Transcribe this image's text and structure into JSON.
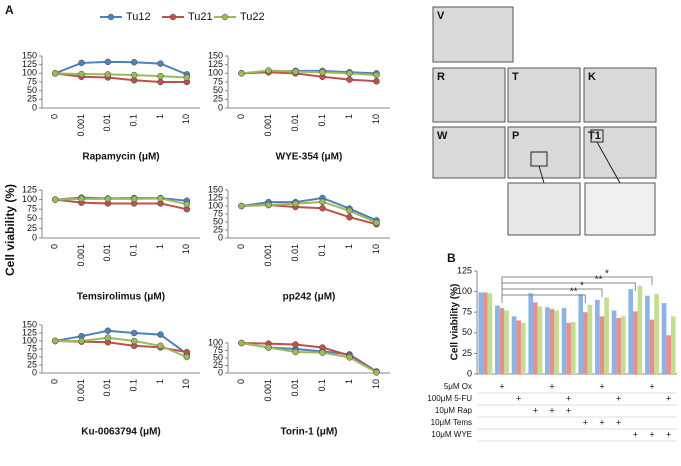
{
  "panel_labels": [
    "A",
    "B"
  ],
  "y_label": "Cell viability (%)",
  "legend": [
    {
      "name": "Tu12",
      "color": "#4f81bd"
    },
    {
      "name": "Tu21",
      "color": "#c0504d"
    },
    {
      "name": "Tu22",
      "color": "#9bbb59"
    }
  ],
  "chart_data": [
    {
      "type": "line",
      "x_label": "Rapamycin (μM)",
      "categories": [
        "0",
        "0.001",
        "0.01",
        "0.1",
        "1",
        "10"
      ],
      "ylim": [
        0,
        150
      ],
      "yticks": [
        0,
        25,
        50,
        75,
        100,
        125,
        150
      ],
      "series": [
        {
          "color": "#4f81bd",
          "values": [
            100,
            130,
            133,
            132,
            128,
            97
          ]
        },
        {
          "color": "#c0504d",
          "values": [
            100,
            90,
            88,
            80,
            75,
            75
          ]
        },
        {
          "color": "#9bbb59",
          "values": [
            100,
            98,
            97,
            95,
            92,
            88
          ]
        }
      ]
    },
    {
      "type": "line",
      "x_label": "WYE-354 (μM)",
      "categories": [
        "0",
        "0.001",
        "0.01",
        "0.1",
        "1",
        "10"
      ],
      "ylim": [
        0,
        150
      ],
      "yticks": [
        0,
        25,
        50,
        75,
        100,
        125,
        150
      ],
      "series": [
        {
          "color": "#4f81bd",
          "values": [
            100,
            105,
            107,
            107,
            103,
            100
          ]
        },
        {
          "color": "#c0504d",
          "values": [
            100,
            103,
            100,
            90,
            82,
            77
          ]
        },
        {
          "color": "#9bbb59",
          "values": [
            100,
            108,
            105,
            103,
            100,
            95
          ]
        }
      ]
    },
    {
      "type": "line",
      "x_label": "Temsirolimus (μM)",
      "categories": [
        "0",
        "0.001",
        "0.01",
        "0.1",
        "1",
        "10"
      ],
      "ylim": [
        0,
        125
      ],
      "yticks": [
        0,
        25,
        50,
        75,
        100,
        125
      ],
      "series": [
        {
          "color": "#4f81bd",
          "values": [
            100,
            105,
            103,
            104,
            104,
            97
          ]
        },
        {
          "color": "#c0504d",
          "values": [
            100,
            92,
            90,
            90,
            90,
            75
          ]
        },
        {
          "color": "#9bbb59",
          "values": [
            100,
            102,
            102,
            102,
            103,
            88
          ]
        }
      ]
    },
    {
      "type": "line",
      "x_label": "pp242 (μM)",
      "categories": [
        "0",
        "0.001",
        "0.01",
        "0.1",
        "1",
        "10"
      ],
      "ylim": [
        0,
        150
      ],
      "yticks": [
        0,
        25,
        50,
        75,
        100,
        125,
        150
      ],
      "series": [
        {
          "color": "#4f81bd",
          "values": [
            100,
            112,
            112,
            125,
            92,
            55
          ]
        },
        {
          "color": "#c0504d",
          "values": [
            100,
            103,
            97,
            93,
            65,
            43
          ]
        },
        {
          "color": "#9bbb59",
          "values": [
            100,
            103,
            107,
            113,
            85,
            48
          ]
        }
      ]
    },
    {
      "type": "line",
      "x_label": "Ku-0063794 (μM)",
      "categories": [
        "0",
        "0.001",
        "0.01",
        "0.1",
        "1",
        "10"
      ],
      "ylim": [
        0,
        150
      ],
      "yticks": [
        0,
        25,
        50,
        75,
        100,
        125,
        150
      ],
      "series": [
        {
          "color": "#4f81bd",
          "values": [
            100,
            115,
            132,
            125,
            120,
            60
          ]
        },
        {
          "color": "#c0504d",
          "values": [
            100,
            98,
            96,
            85,
            80,
            65
          ]
        },
        {
          "color": "#9bbb59",
          "values": [
            100,
            100,
            110,
            100,
            85,
            50
          ]
        }
      ]
    },
    {
      "type": "line",
      "x_label": "Torin-1 (μM)",
      "categories": [
        "0",
        "0.001",
        "0.01",
        "0.1",
        "1",
        "10"
      ],
      "ylim": [
        0,
        100
      ],
      "yticks": [
        0,
        25,
        50,
        75,
        100
      ],
      "series": [
        {
          "color": "#4f81bd",
          "values": [
            100,
            85,
            80,
            72,
            62,
            5
          ]
        },
        {
          "color": "#c0504d",
          "values": [
            100,
            98,
            95,
            85,
            58,
            3
          ]
        },
        {
          "color": "#9bbb59",
          "values": [
            100,
            85,
            70,
            68,
            52,
            2
          ]
        }
      ]
    },
    {
      "type": "bar",
      "y_label": "Cell viability (%)",
      "ylim": [
        0,
        125
      ],
      "yticks": [
        0,
        25,
        50,
        75,
        100,
        125
      ],
      "series": [
        {
          "color": "#8db3e2",
          "values": [
            99,
            83,
            70,
            98,
            81,
            80,
            97,
            90,
            77,
            103,
            95,
            86
          ]
        },
        {
          "color": "#e6908e",
          "values": [
            99,
            80,
            65,
            87,
            79,
            62,
            75,
            70,
            68,
            76,
            66,
            47
          ]
        },
        {
          "color": "#c4dd91",
          "values": [
            98,
            77,
            62,
            82,
            77,
            63,
            84,
            93,
            70,
            107,
            97,
            70
          ]
        }
      ],
      "annotations": [
        "*",
        "**",
        "*",
        "**"
      ],
      "treatments": [
        {
          "label": "5μM Ox",
          "marks": [
            null,
            "+",
            null,
            null,
            "+",
            null,
            null,
            "+",
            null,
            null,
            "+",
            null
          ]
        },
        {
          "label": "100μM 5-FU",
          "marks": [
            null,
            null,
            "+",
            null,
            null,
            "+",
            null,
            null,
            "+",
            null,
            null,
            "+"
          ]
        },
        {
          "label": "10μM Rap",
          "marks": [
            null,
            null,
            null,
            "+",
            "+",
            "+",
            null,
            null,
            null,
            null,
            null,
            null
          ]
        },
        {
          "label": "10μM Tems",
          "marks": [
            null,
            null,
            null,
            null,
            null,
            null,
            "+",
            "+",
            "+",
            null,
            null,
            null
          ]
        },
        {
          "label": "10μM WYE",
          "marks": [
            null,
            null,
            null,
            null,
            null,
            null,
            null,
            null,
            null,
            "+",
            "+",
            "+"
          ]
        }
      ]
    }
  ],
  "images": [
    {
      "label": "V"
    },
    {
      "label": "R"
    },
    {
      "label": "T"
    },
    {
      "label": "K"
    },
    {
      "label": "W"
    },
    {
      "label": "P"
    },
    {
      "label": "T1"
    }
  ]
}
